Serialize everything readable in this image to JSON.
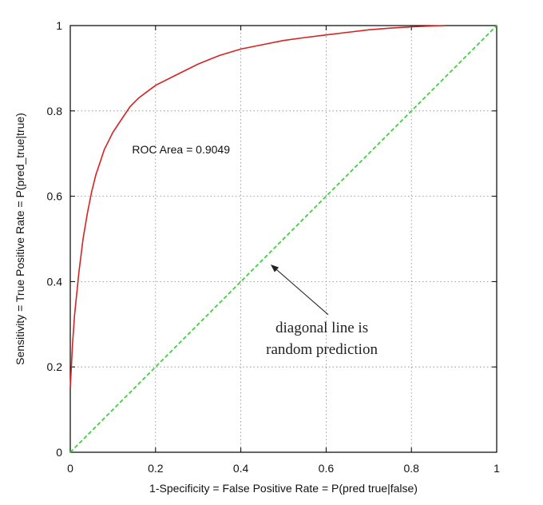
{
  "chart_data": {
    "type": "line",
    "title": "",
    "xlabel": "1-Specificity = False Positive Rate = P(pred  true|false)",
    "ylabel": "Sensitivity = True Positive Rate = P(pred_true|true)",
    "xlim": [
      0,
      1
    ],
    "ylim": [
      0,
      1
    ],
    "x_ticks": [
      "0",
      "0.2",
      "0.4",
      "0.6",
      "0.8",
      "1"
    ],
    "y_ticks": [
      "0",
      "0.2",
      "0.4",
      "0.6",
      "0.8",
      "1"
    ],
    "grid": true,
    "series": [
      {
        "color": "#d62222",
        "style": "solid",
        "x": [
          0,
          0.005,
          0.01,
          0.02,
          0.03,
          0.04,
          0.05,
          0.06,
          0.07,
          0.08,
          0.09,
          0.1,
          0.12,
          0.14,
          0.16,
          0.18,
          0.2,
          0.25,
          0.3,
          0.35,
          0.4,
          0.45,
          0.5,
          0.55,
          0.6,
          0.65,
          0.7,
          0.75,
          0.8,
          0.85,
          0.88
        ],
        "y": [
          0.15,
          0.25,
          0.32,
          0.42,
          0.5,
          0.56,
          0.61,
          0.65,
          0.68,
          0.71,
          0.73,
          0.75,
          0.78,
          0.81,
          0.83,
          0.845,
          0.86,
          0.885,
          0.91,
          0.93,
          0.945,
          0.955,
          0.965,
          0.972,
          0.978,
          0.984,
          0.99,
          0.994,
          0.997,
          0.999,
          1.0
        ]
      },
      {
        "color": "#33cc33",
        "style": "dashed",
        "x": [
          0,
          1
        ],
        "y": [
          0,
          1
        ]
      }
    ],
    "annotations": [
      {
        "text": "ROC Area = 0.9049",
        "x": 0.145,
        "y": 0.7
      },
      {
        "lines": [
          "diagonal line is",
          "random prediction"
        ],
        "x": 0.59,
        "y": 0.27,
        "arrow_to": [
          0.47,
          0.44
        ]
      }
    ]
  }
}
